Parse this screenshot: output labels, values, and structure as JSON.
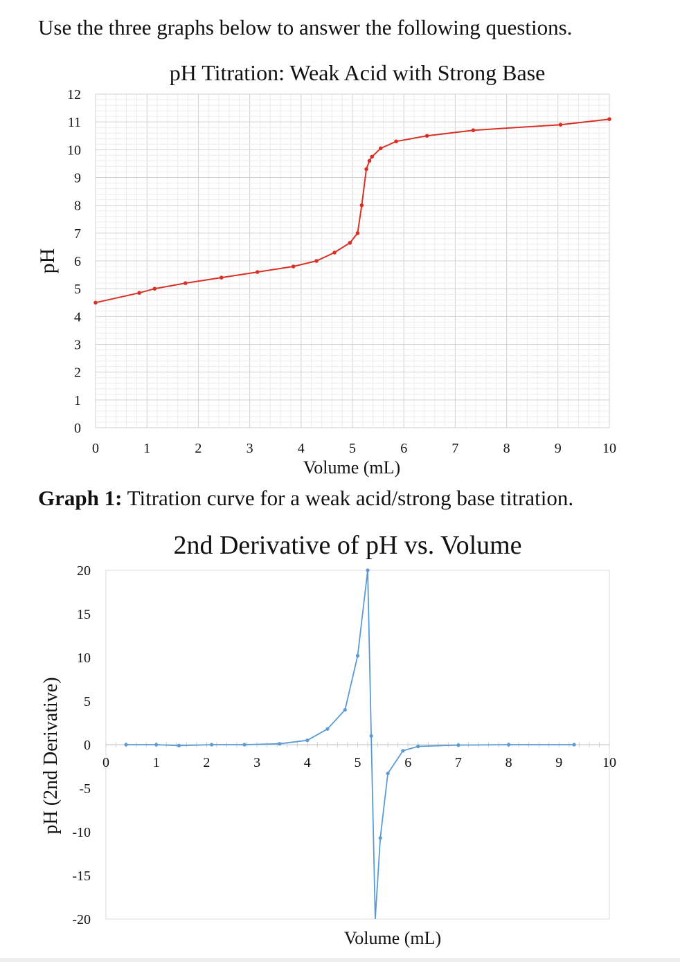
{
  "page": {
    "instructions": "Use the three graphs below to answer the following questions.",
    "caption_bold": "Graph 1:",
    "caption_text": " Titration curve for a weak acid/strong base titration."
  },
  "colors": {
    "curve1": "#d93025",
    "curve2": "#5b9bd5",
    "grid": "#d9d9d9"
  },
  "chart_data": [
    {
      "type": "line",
      "title": "pH Titration:  Weak Acid  with Strong Base",
      "xlabel": "Volume (mL)",
      "ylabel": "pH",
      "xlim": [
        0,
        10
      ],
      "ylim": [
        0,
        12
      ],
      "x_ticks": [
        "0",
        "1",
        "2",
        "3",
        "4",
        "5",
        "6",
        "7",
        "8",
        "9",
        "10"
      ],
      "y_ticks": [
        "0",
        "1",
        "2",
        "3",
        "4",
        "5",
        "6",
        "7",
        "8",
        "9",
        "10",
        "11",
        "12"
      ],
      "grid": true,
      "series": [
        {
          "x": [
            0,
            0.85,
            1.15,
            1.75,
            2.45,
            3.15,
            3.85,
            4.3,
            4.65,
            4.95,
            5.1,
            5.18,
            5.27,
            5.33,
            5.38,
            5.55,
            5.85,
            6.45,
            7.35,
            9.05,
            10
          ],
          "y": [
            4.5,
            4.85,
            5.0,
            5.2,
            5.4,
            5.6,
            5.8,
            6.0,
            6.3,
            6.65,
            7.0,
            8.0,
            9.3,
            9.6,
            9.75,
            10.05,
            10.3,
            10.5,
            10.7,
            10.9,
            11.1
          ]
        }
      ]
    },
    {
      "type": "line",
      "title": "2nd Derivative of pH vs. Volume",
      "xlabel": "Volume (mL)",
      "ylabel": "pH (2nd Derivative)",
      "xlim": [
        0,
        10
      ],
      "ylim": [
        -20,
        20
      ],
      "x_ticks": [
        "0",
        "1",
        "2",
        "3",
        "4",
        "5",
        "6",
        "7",
        "8",
        "9",
        "10"
      ],
      "y_ticks": [
        "20",
        "15",
        "10",
        "5",
        "0",
        "-5",
        "-10",
        "-15",
        "-20"
      ],
      "grid": false,
      "series": [
        {
          "x": [
            0.4,
            1.0,
            1.45,
            2.1,
            2.75,
            3.45,
            4.0,
            4.4,
            4.75,
            5.0,
            5.2,
            5.27,
            5.35,
            5.45,
            5.6,
            5.9,
            6.2,
            7.0,
            8.0,
            9.3
          ],
          "y": [
            0,
            0,
            -0.1,
            0,
            0,
            0.1,
            0.5,
            1.8,
            4.0,
            10.2,
            20.0,
            1.0,
            -20.0,
            -10.7,
            -3.3,
            -0.7,
            -0.2,
            -0.05,
            0,
            0
          ]
        }
      ]
    }
  ]
}
